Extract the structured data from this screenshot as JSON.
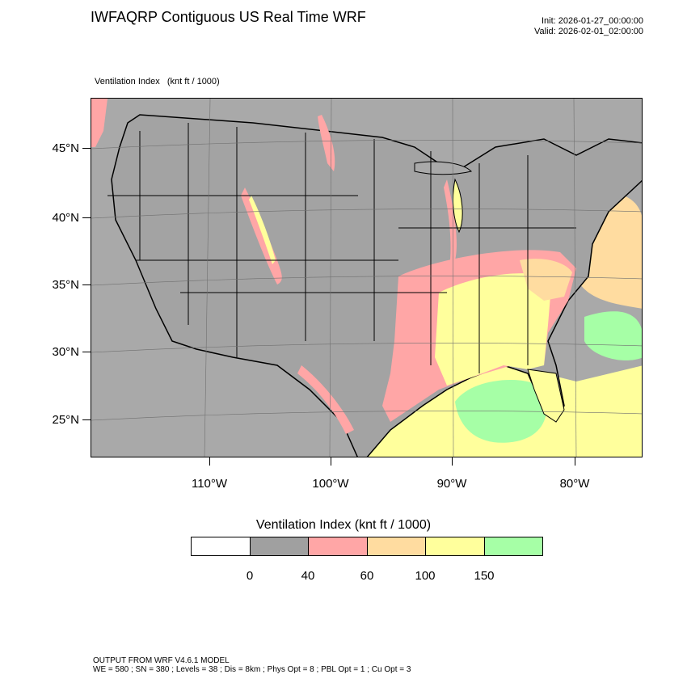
{
  "header": {
    "title": "IWFAQRP Contiguous US Real Time WRF",
    "init": "Init: 2026-01-27_00:00:00",
    "valid": "Valid: 2026-02-01_02:00:00"
  },
  "field_label": "Ventilation Index   (knt ft / 1000)",
  "map": {
    "lat_labels": [
      "45°N",
      "40°N",
      "35°N",
      "30°N",
      "25°N"
    ],
    "lon_labels": [
      "110°W",
      "100°W",
      "90°W",
      "80°W"
    ],
    "colors": {
      "ocean": "#a9a9a9",
      "land": "#a3a3a3",
      "low": "#a0a0a0",
      "pink": "#ffa6a6",
      "orange": "#ffdca0",
      "yellow": "#ffff9c",
      "green": "#a6ffa6",
      "boundary": "#000000"
    }
  },
  "colorbar": {
    "title": "Ventilation Index  (knt ft / 1000)",
    "colors": [
      "#ffffff",
      "#a0a0a0",
      "#ffa6a6",
      "#ffdca0",
      "#ffff9c",
      "#a6ffa6"
    ],
    "labels": [
      "0",
      "40",
      "60",
      "100",
      "150"
    ]
  },
  "footer": {
    "line1": "OUTPUT FROM WRF V4.6.1 MODEL",
    "line2": "WE = 580 ; SN = 380 ; Levels = 38 ; Dis = 8km ; Phys Opt = 8 ; PBL Opt = 1 ; Cu Opt = 3"
  }
}
